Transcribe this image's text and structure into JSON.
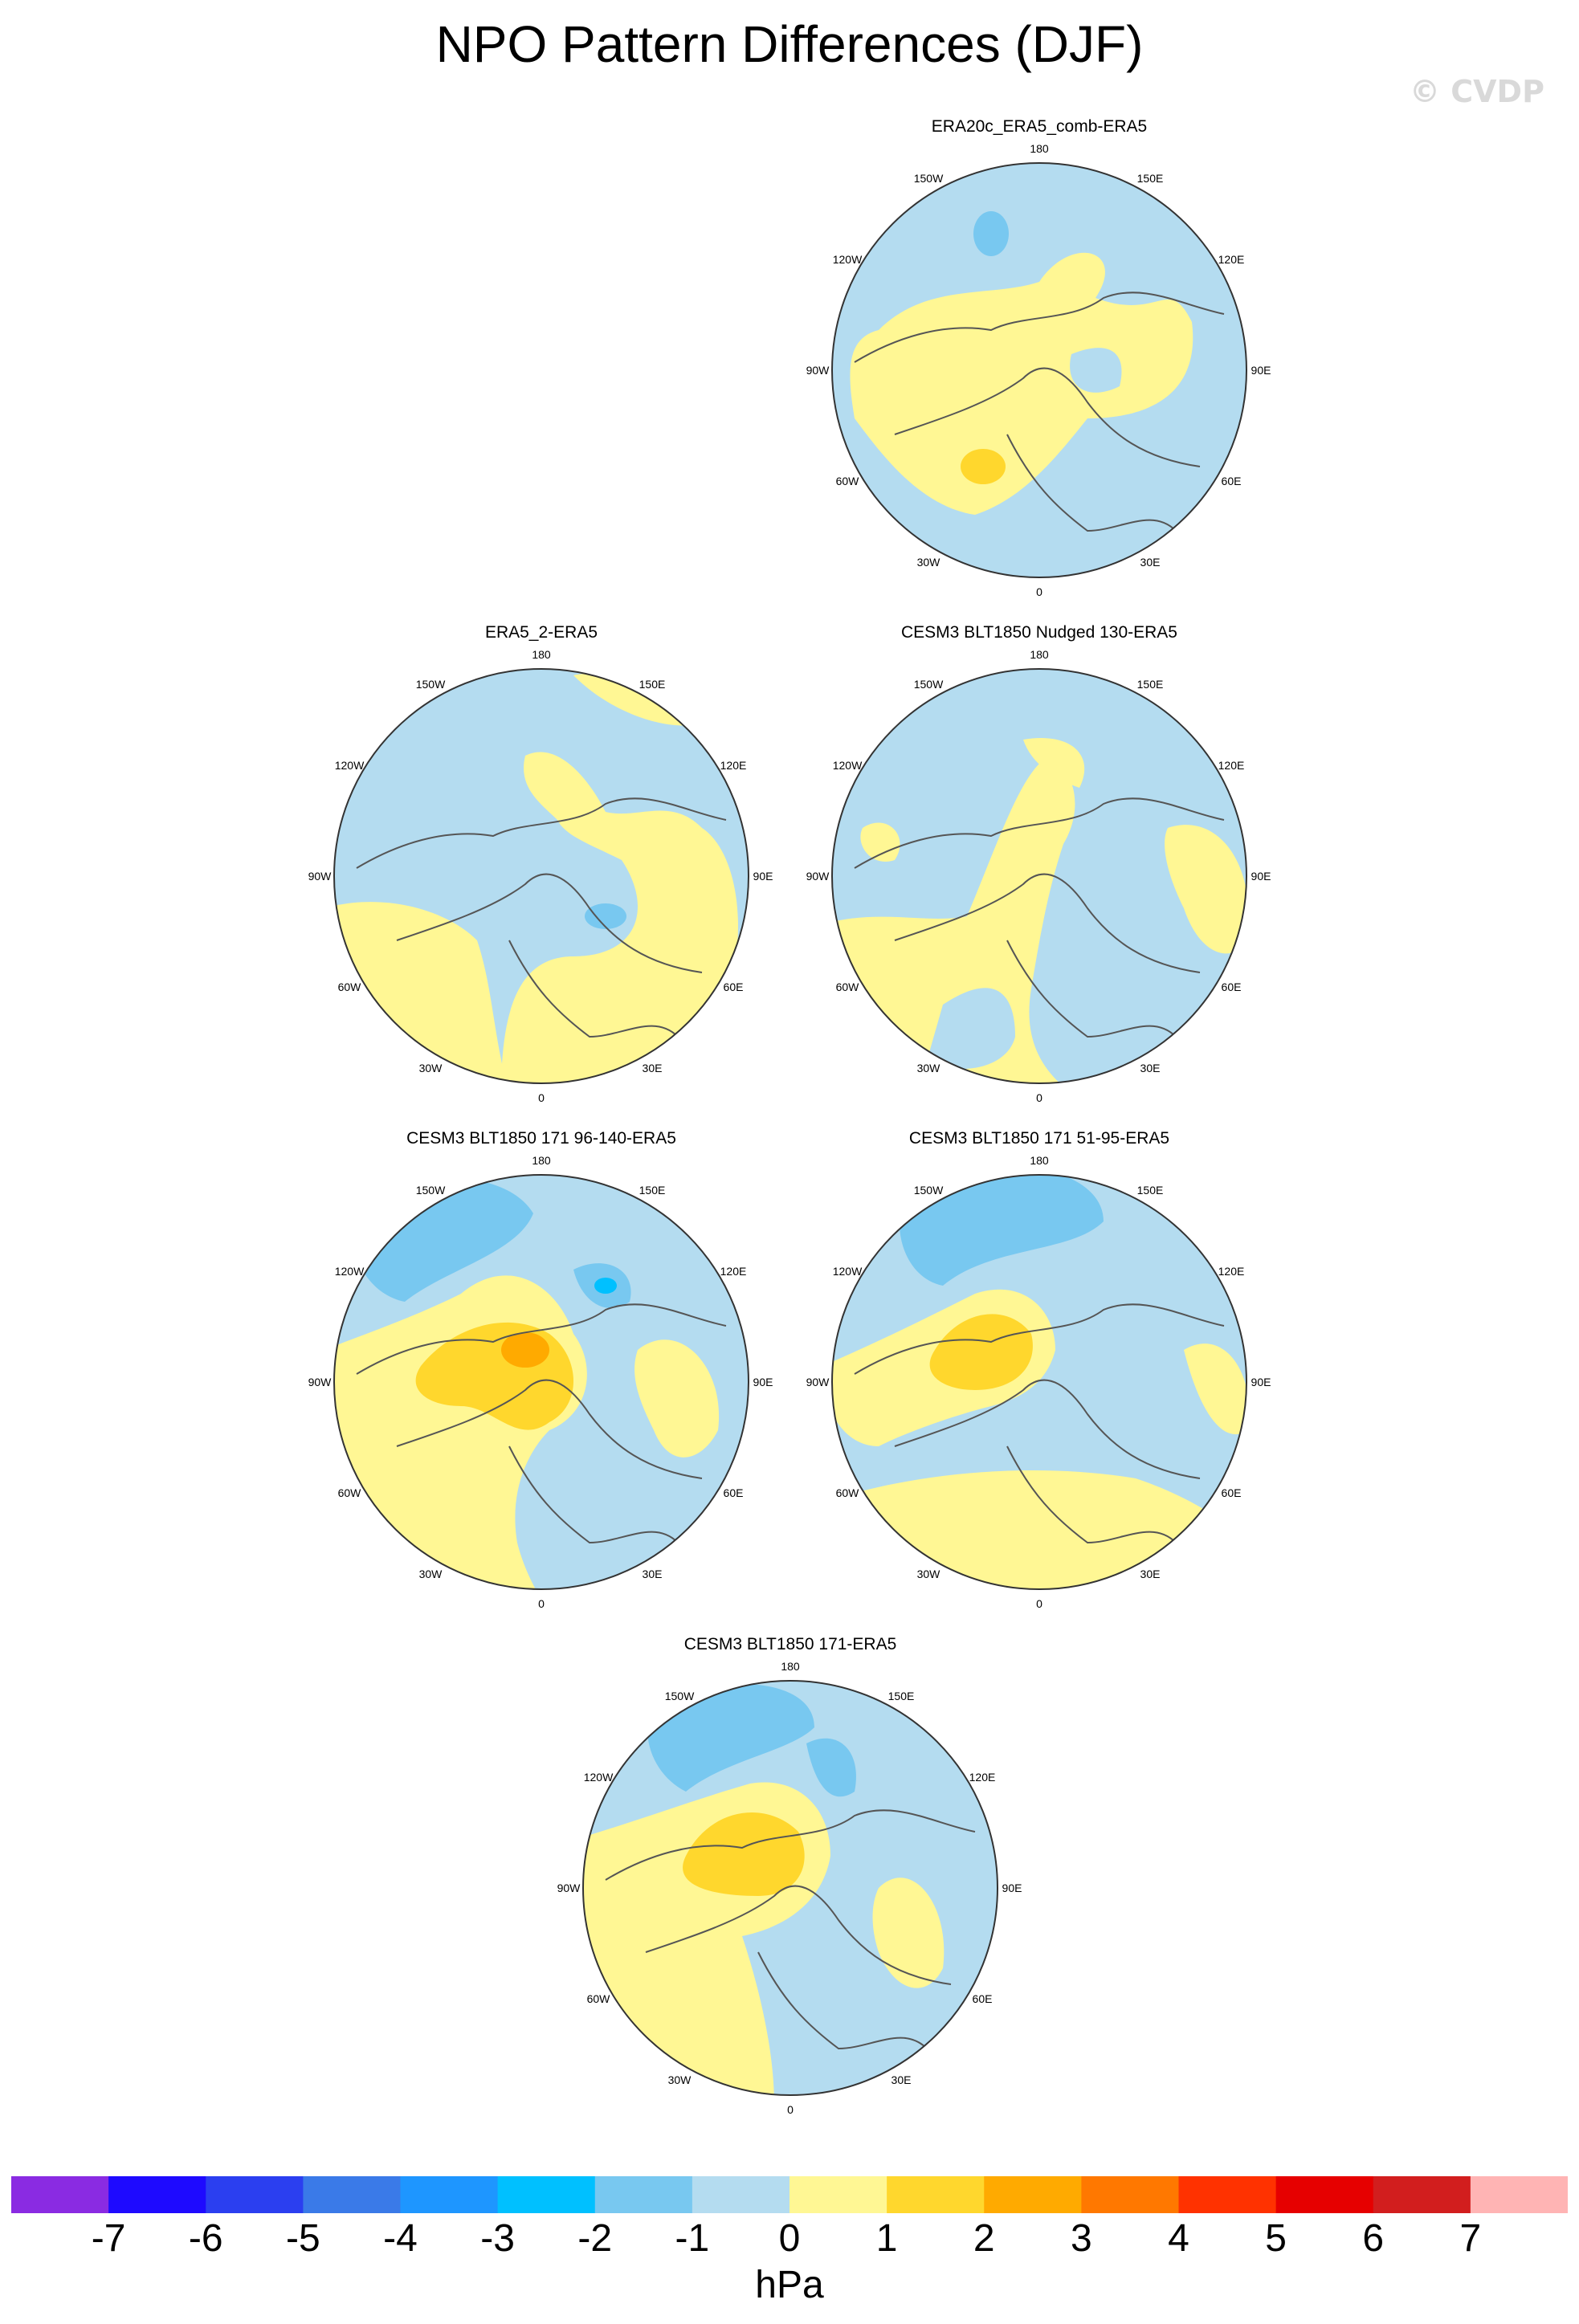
{
  "title": "NPO Pattern Differences (DJF)",
  "watermark": "© CVDP",
  "lon_labels": [
    "180",
    "150E",
    "120E",
    "90E",
    "60E",
    "30E",
    "0",
    "30W",
    "60W",
    "90W",
    "120W",
    "150W"
  ],
  "panels": [
    {
      "title": "ERA20c_ERA5_comb-ERA5",
      "pattern": "p1"
    },
    {
      "title": "ERA5_2-ERA5",
      "pattern": "p2"
    },
    {
      "title": "CESM3 BLT1850 Nudged 130-ERA5",
      "pattern": "p3"
    },
    {
      "title": "CESM3 BLT1850 171 96-140-ERA5",
      "pattern": "p4"
    },
    {
      "title": "CESM3 BLT1850 171 51-95-ERA5",
      "pattern": "p5"
    },
    {
      "title": "CESM3 BLT1850 171-ERA5",
      "pattern": "p6"
    }
  ],
  "colorbar": {
    "unit": "hPa",
    "labels": [
      "-7",
      "-6",
      "-5",
      "-4",
      "-3",
      "-2",
      "-1",
      "0",
      "1",
      "2",
      "3",
      "4",
      "5",
      "6",
      "7"
    ],
    "colors": [
      "#8a2be2",
      "#1e0aff",
      "#2b3ff0",
      "#3a7ae8",
      "#1e96ff",
      "#00c0ff",
      "#78c8f0",
      "#b4dcf0",
      "#fff794",
      "#ffd72d",
      "#ffaa00",
      "#ff7800",
      "#ff3200",
      "#e60000",
      "#d21e1e",
      "#ffb4b4"
    ]
  },
  "colors": {
    "pos1": "#fff794",
    "pos2": "#ffd72d",
    "pos3": "#ffaa00",
    "neg1": "#b4dcf0",
    "neg2": "#78c8f0",
    "neg3": "#00c0ff"
  }
}
